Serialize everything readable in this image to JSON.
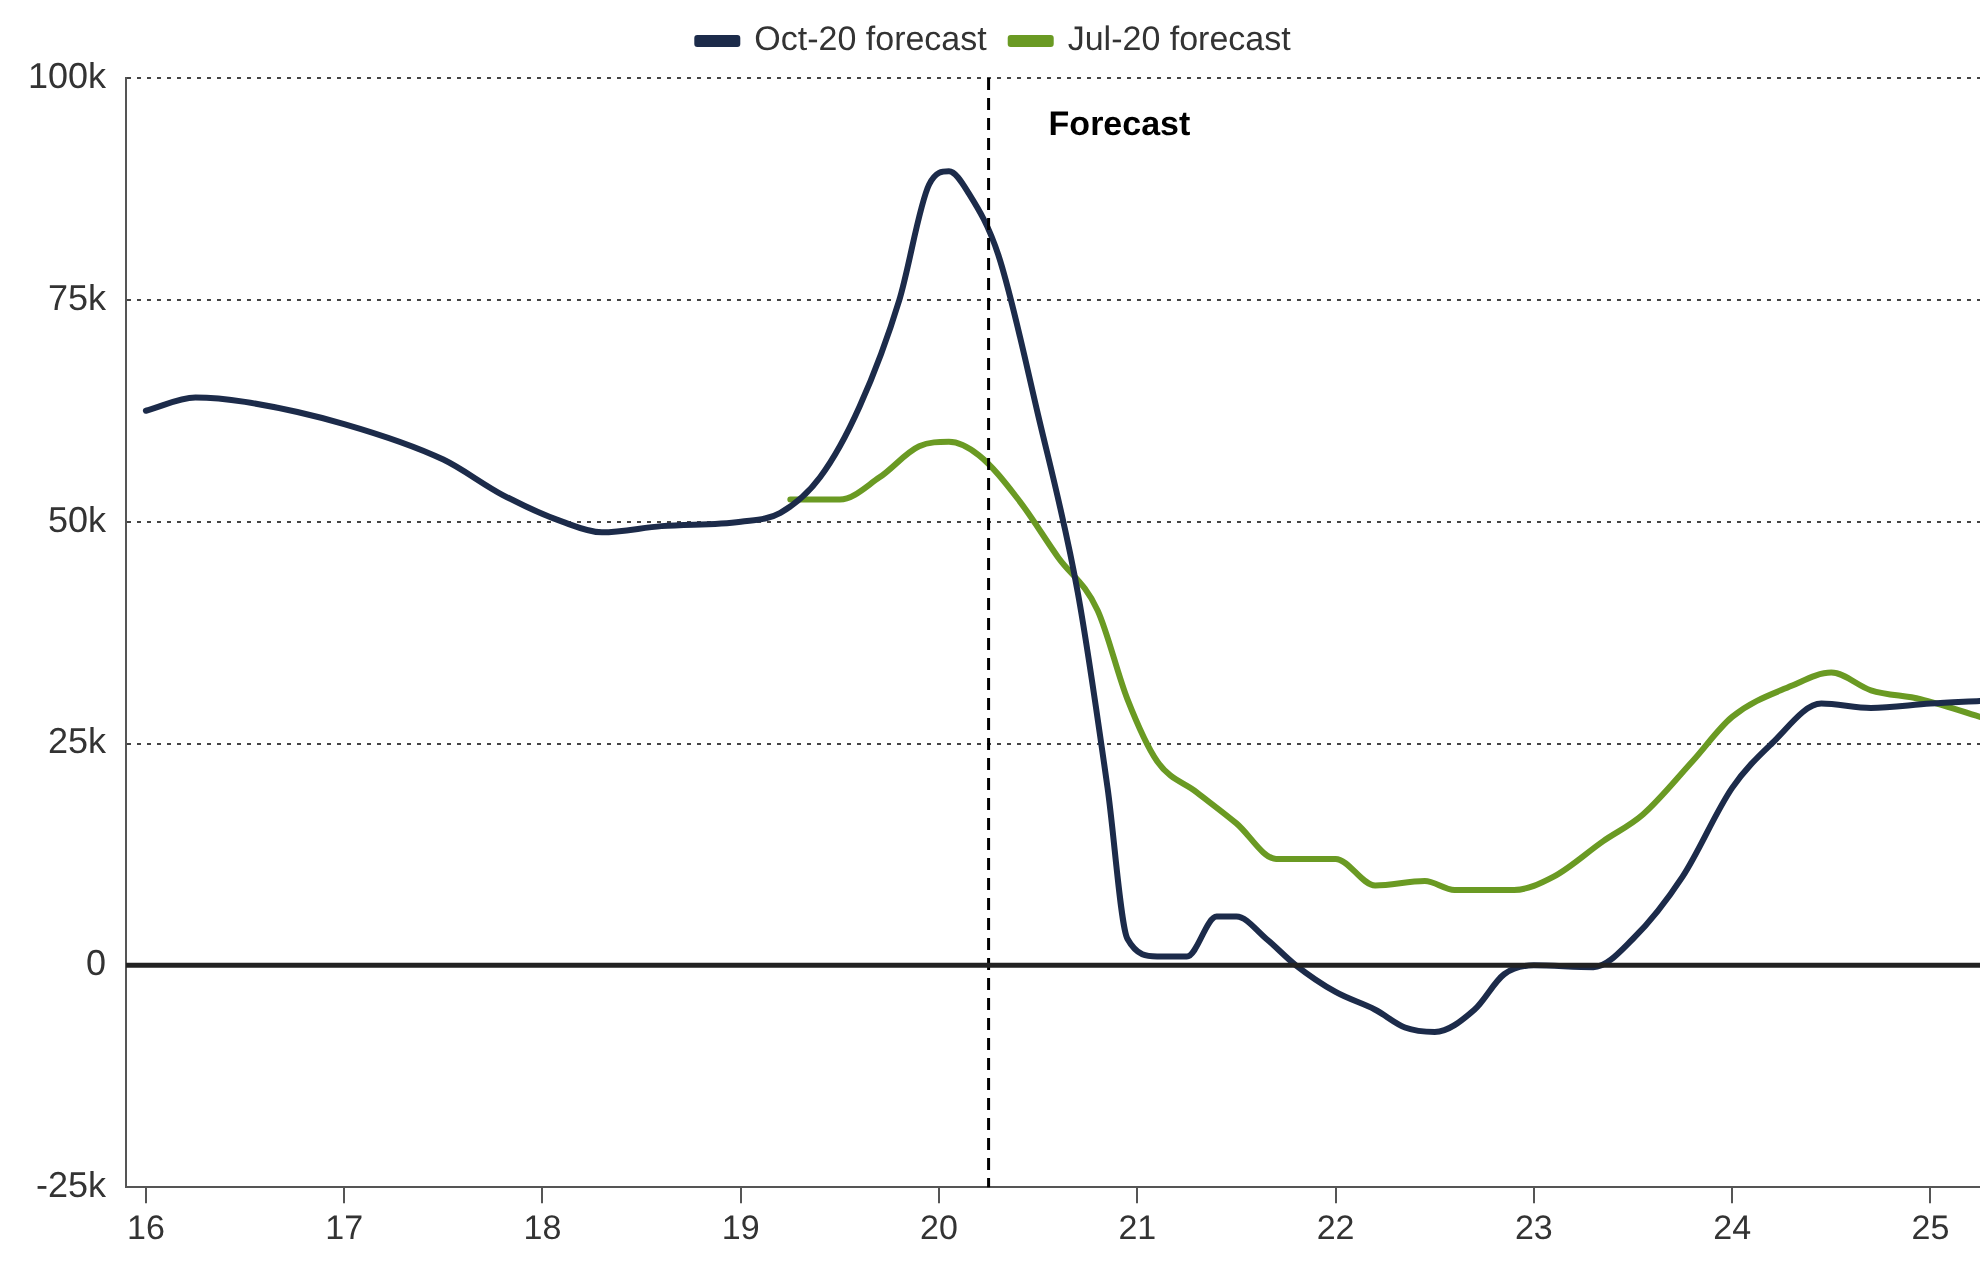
{
  "chart_data": {
    "type": "line",
    "xlim": [
      15.9,
      25.25
    ],
    "xticks": [
      16,
      17,
      18,
      19,
      20,
      21,
      22,
      23,
      24,
      25
    ],
    "ylim": [
      -25000,
      100000
    ],
    "yticks": [
      {
        "value": -25000,
        "label": "-25k"
      },
      {
        "value": 0,
        "label": "0"
      },
      {
        "value": 25000,
        "label": "25k"
      },
      {
        "value": 50000,
        "label": "50k"
      },
      {
        "value": 75000,
        "label": "75k"
      },
      {
        "value": 100000,
        "label": "100k"
      }
    ],
    "grid": "y",
    "legend": "top",
    "marker": "none",
    "line_style": "solid",
    "series": [
      {
        "name": "Oct-20 forecast",
        "color": "#1c2b4a",
        "x": [
          16.0,
          16.25,
          16.5,
          17.0,
          17.5,
          17.8,
          18.1,
          18.3,
          18.6,
          19.0,
          19.2,
          19.4,
          19.6,
          19.8,
          19.95,
          20.05,
          20.15,
          20.3,
          20.5,
          20.7,
          20.85,
          20.95,
          21.1,
          21.25,
          21.4,
          21.5,
          21.65,
          21.8,
          22.0,
          22.2,
          22.35,
          22.5,
          22.7,
          22.85,
          23.0,
          23.3,
          23.5,
          23.75,
          24.0,
          24.2,
          24.45,
          24.7,
          25.0,
          25.25
        ],
        "values": [
          62500,
          64000,
          63500,
          61000,
          57000,
          53000,
          50000,
          48800,
          49500,
          50000,
          51000,
          55000,
          63000,
          75000,
          88000,
          89500,
          87000,
          80000,
          62000,
          42000,
          20000,
          3000,
          1000,
          1000,
          5500,
          5500,
          3000,
          0,
          -3000,
          -5000,
          -7000,
          -7500,
          -5000,
          -1000,
          0,
          -200,
          3000,
          10000,
          20000,
          25000,
          29500,
          29000,
          29500,
          29800
        ]
      },
      {
        "name": "Jul-20 forecast",
        "color": "#6a9a23",
        "x": [
          19.25,
          19.5,
          19.7,
          19.9,
          20.05,
          20.2,
          20.4,
          20.6,
          20.8,
          20.95,
          21.1,
          21.3,
          21.5,
          21.7,
          21.9,
          22.0,
          22.2,
          22.45,
          22.6,
          22.9,
          23.1,
          23.35,
          23.55,
          23.8,
          24.0,
          24.3,
          24.5,
          24.7,
          24.95,
          25.25
        ],
        "values": [
          52500,
          52500,
          55000,
          58500,
          59000,
          57500,
          52500,
          46000,
          40000,
          30000,
          23000,
          19500,
          16000,
          12000,
          12000,
          12000,
          9000,
          9500,
          8500,
          8500,
          10000,
          14000,
          17000,
          23000,
          28000,
          31500,
          33000,
          31000,
          30000,
          28000
        ]
      }
    ],
    "ref_lines": [
      {
        "axis": "x",
        "value": 20.25,
        "label": "Forecast",
        "color": "#000000",
        "line_style": "dashed"
      },
      {
        "axis": "y",
        "value": 0,
        "color": "#222222",
        "line_style": "solid"
      }
    ]
  }
}
